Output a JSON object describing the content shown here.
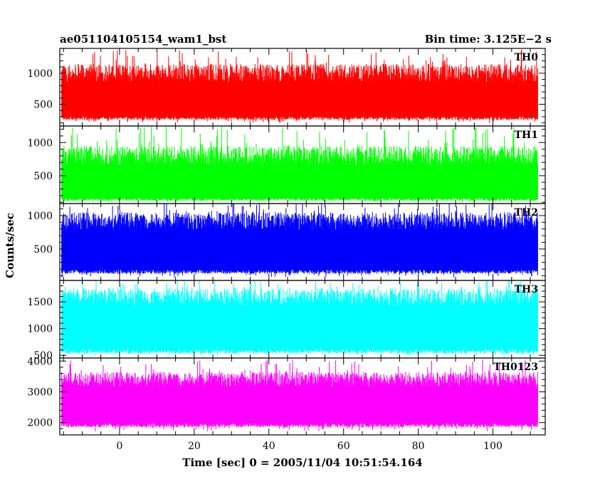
{
  "header": {
    "title": "ae051104105154_wam1_bst",
    "bin_time": "Bin time: 3.125E−2 s"
  },
  "chart_data": {
    "type": "line",
    "xlabel": "Time [sec] 0 = 2005/11/04 10:51:54.164",
    "ylabel": "Counts/sec",
    "xlim": [
      -16,
      114
    ],
    "x_range_data": [
      -15.5,
      112
    ],
    "xticks": [
      0,
      20,
      40,
      60,
      80,
      100
    ],
    "panels": [
      {
        "name": "TH0",
        "color": "#ff0000",
        "ylim": [
          150,
          1400
        ],
        "yticks": [
          500,
          1000
        ],
        "mean": 620,
        "low": 250,
        "high": 1150,
        "peak": 1380
      },
      {
        "name": "TH1",
        "color": "#00ff00",
        "ylim": [
          80,
          1250
        ],
        "yticks": [
          500,
          1000
        ],
        "mean": 420,
        "low": 120,
        "high": 950,
        "peak": 1250
      },
      {
        "name": "TH2",
        "color": "#0000ff",
        "ylim": [
          30,
          1180
        ],
        "yticks": [
          500,
          1000
        ],
        "mean": 570,
        "low": 130,
        "high": 1050,
        "peak": 1200
      },
      {
        "name": "TH3",
        "color": "#00ffff",
        "ylim": [
          450,
          1900
        ],
        "yticks": [
          500,
          1000,
          1500
        ],
        "mean": 1150,
        "low": 530,
        "high": 1750,
        "peak": 1900
      },
      {
        "name": "TH0123",
        "color": "#ff00ff",
        "ylim": [
          1600,
          4100
        ],
        "yticks": [
          2000,
          3000,
          4000
        ],
        "mean": 2750,
        "low": 1850,
        "high": 3650,
        "peak": 4050
      }
    ]
  }
}
